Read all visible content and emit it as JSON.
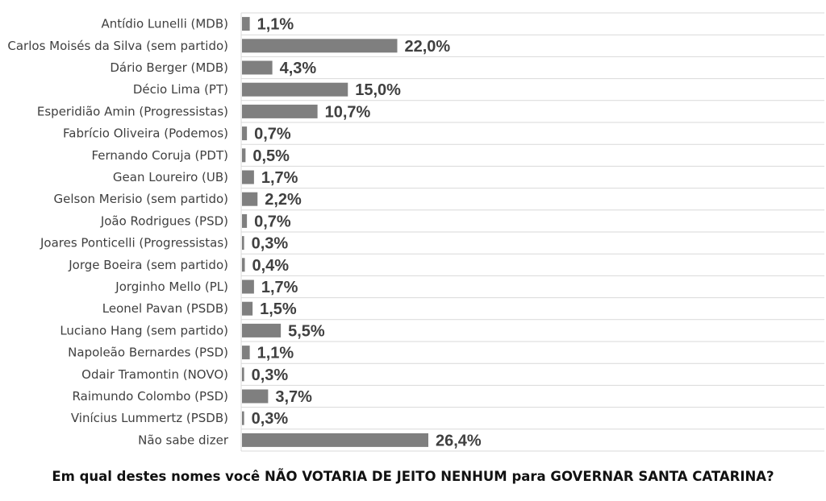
{
  "question": "Em qual destes nomes você NÃO VOTARIA DE JEITO NENHUM para GOVERNAR SANTA CATARINA?",
  "chart_data": {
    "type": "bar",
    "orientation": "horizontal",
    "categories": [
      "Antídio Lunelli (MDB)",
      "Carlos Moisés da Silva (sem partido)",
      "Dário Berger (MDB)",
      "Décio Lima (PT)",
      "Esperidião Amin (Progressistas)",
      "Fabrício Oliveira (Podemos)",
      "Fernando Coruja (PDT)",
      "Gean Loureiro (UB)",
      "Gelson Merisio (sem partido)",
      "João Rodrigues (PSD)",
      "Joares Ponticelli (Progressistas)",
      "Jorge Boeira (sem partido)",
      "Jorginho Mello (PL)",
      "Leonel Pavan (PSDB)",
      "Luciano Hang (sem partido)",
      "Napoleão Bernardes (PSD)",
      "Odair Tramontin (NOVO)",
      "Raimundo Colombo (PSD)",
      "Vinícius Lummertz (PSDB)",
      "Não sabe dizer"
    ],
    "values": [
      1.1,
      22.0,
      4.3,
      15.0,
      10.7,
      0.7,
      0.5,
      1.7,
      2.2,
      0.7,
      0.3,
      0.4,
      1.7,
      1.5,
      5.5,
      1.1,
      0.3,
      3.7,
      0.3,
      26.4
    ],
    "value_labels": [
      "1,1%",
      "22,0%",
      "4,3%",
      "15,0%",
      "10,7%",
      "0,7%",
      "0,5%",
      "1,7%",
      "2,2%",
      "0,7%",
      "0,3%",
      "0,4%",
      "1,7%",
      "1,5%",
      "5,5%",
      "1,1%",
      "0,3%",
      "3,7%",
      "0,3%",
      "26,4%"
    ],
    "bar_color": "#7f7f7f",
    "grid_color": "#d9d9d9",
    "grid": true,
    "legend": false
  }
}
